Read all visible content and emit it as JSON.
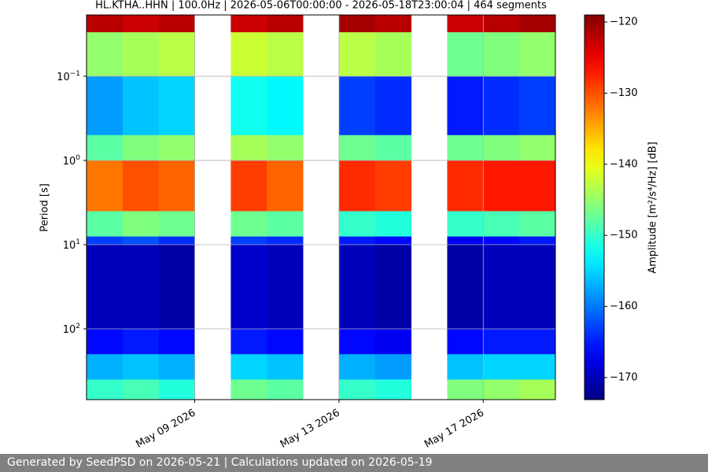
{
  "chart_data": {
    "type": "heatmap",
    "title": "HL.KTHA..HHN | 100.0Hz | 2026-05-06T00:00:00 - 2026-05-18T23:00:04 | 464 segments",
    "y_label": "Period [s]",
    "colorbar_label": "Amplitude [m²/s⁴/Hz] [dB]",
    "footer": "Generated by SeedPSD on 2026-05-21 | Calculations updated on 2026-05-19",
    "colormap": "jet",
    "yscale": "log",
    "y_inverted": true,
    "grid": true,
    "xlim": [
      "2026-05-06",
      "2026-05-19"
    ],
    "xticks": [
      {
        "value": "2026-05-09",
        "label": "May 09 2026"
      },
      {
        "value": "2026-05-13",
        "label": "May 13 2026"
      },
      {
        "value": "2026-05-17",
        "label": "May 17 2026"
      }
    ],
    "ylim": [
      0.0187,
      693
    ],
    "yticks": [
      {
        "value": 0.1,
        "label": "10",
        "exponent": "−1"
      },
      {
        "value": 1,
        "label": "10",
        "exponent": "0"
      },
      {
        "value": 10,
        "label": "10",
        "exponent": "1"
      },
      {
        "value": 100,
        "label": "10",
        "exponent": "2"
      }
    ],
    "clim": [
      -173.1,
      -119.0
    ],
    "cticks": [
      {
        "value": -120,
        "label": "−120"
      },
      {
        "value": -130,
        "label": "−130"
      },
      {
        "value": -140,
        "label": "−140"
      },
      {
        "value": -150,
        "label": "−150"
      },
      {
        "value": -160,
        "label": "−160"
      },
      {
        "value": -170,
        "label": "−170"
      }
    ],
    "period_bins": [
      0.0187,
      0.03,
      0.1,
      0.5,
      1,
      4,
      8,
      10,
      100,
      200,
      400,
      693
    ],
    "x": [
      "2026-05-06",
      "2026-05-07",
      "2026-05-08",
      "2026-05-10",
      "2026-05-11",
      "2026-05-13",
      "2026-05-14",
      "2026-05-16",
      "2026-05-17",
      "2026-05-18"
    ],
    "z": [
      [
        -122,
        -145,
        -158,
        -148,
        -132,
        -148,
        -163,
        -170,
        -166,
        -157,
        -150
      ],
      [
        -123,
        -144,
        -156,
        -146,
        -130,
        -146,
        -162,
        -170,
        -165,
        -156,
        -149
      ],
      [
        -122,
        -143,
        -155,
        -145,
        -131,
        -147,
        -164,
        -171,
        -166,
        -157,
        -151
      ],
      [
        -123,
        -142,
        -152,
        -144,
        -129,
        -147,
        -163,
        -169,
        -165,
        -155,
        -147
      ],
      [
        -122,
        -143,
        -153,
        -145,
        -131,
        -148,
        -164,
        -170,
        -166,
        -156,
        -148
      ],
      [
        -121,
        -143,
        -163,
        -147,
        -128,
        -150,
        -165,
        -170,
        -166,
        -157,
        -150
      ],
      [
        -122,
        -144,
        -164,
        -148,
        -129,
        -151,
        -166,
        -171,
        -167,
        -158,
        -151
      ],
      [
        -123,
        -147,
        -165,
        -147,
        -128,
        -150,
        -167,
        -171,
        -166,
        -156,
        -146
      ],
      [
        -122,
        -146,
        -164,
        -146,
        -127,
        -149,
        -166,
        -170,
        -165,
        -155,
        -145
      ],
      [
        -121,
        -145,
        -163,
        -145,
        -127,
        -148,
        -165,
        -170,
        -165,
        -155,
        -144
      ]
    ]
  }
}
